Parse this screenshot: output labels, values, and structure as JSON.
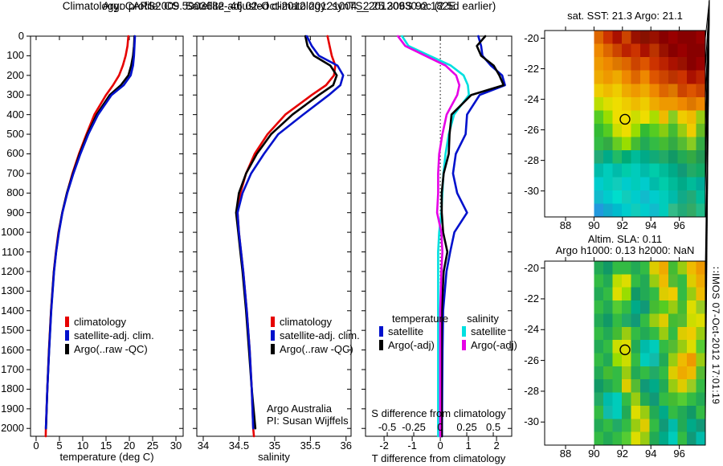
{
  "titles": {
    "line1": "Argo profile: CS 5903682_46 02-Oct-2012 20121004_2 25.306S 92.182E",
    "line2": "Climatology: CARS2009. Satellite-adjusted climatology: synTS_20120930.nc (2.5d earlier)"
  },
  "annotations": {
    "program": "Argo Australia",
    "pi": "PI: Susan Wijffels",
    "stamp": "∷IMOS 07-Oct-2012 17:01:19"
  },
  "chart_data": {
    "depths": [
      0,
      50,
      100,
      150,
      200,
      250,
      300,
      400,
      500,
      600,
      700,
      800,
      900,
      1000,
      1100,
      1200,
      1400,
      1600,
      1800,
      2000,
      2040
    ],
    "depth_ticks": [
      0,
      100,
      200,
      300,
      400,
      500,
      600,
      700,
      800,
      900,
      1000,
      1100,
      1200,
      1300,
      1400,
      1500,
      1600,
      1700,
      1800,
      1900,
      2000
    ],
    "temperature": {
      "type": "line",
      "xlabel": "temperature (deg C)",
      "xticks": [
        0,
        5,
        10,
        15,
        20,
        25,
        30
      ],
      "xlim": [
        -1.2,
        31.55
      ],
      "ylim": [
        0,
        2040
      ],
      "legend": [
        {
          "label": "climatology",
          "color": "#e60000"
        },
        {
          "label": "satellite-adj. clim.",
          "color": "#0011cc"
        },
        {
          "label": "Argo(..raw -QC)",
          "color": "#000000"
        }
      ],
      "series": [
        {
          "name": "climatology",
          "color": "#e60000",
          "values": [
            19.8,
            19.6,
            19.2,
            18.6,
            17.8,
            16.5,
            15.0,
            12.5,
            10.8,
            9.2,
            7.8,
            6.6,
            5.6,
            4.8,
            4.25,
            3.8,
            3.2,
            2.75,
            2.4,
            2.1,
            2.05
          ]
        },
        {
          "name": "Argo(..raw -QC)",
          "color": "#000000",
          "values": [
            21.1,
            21.0,
            20.8,
            20.4,
            19.8,
            18.2,
            15.8,
            13.0,
            11.0,
            9.35,
            7.9,
            6.6,
            5.6,
            4.85,
            4.28,
            3.82,
            3.22,
            2.78,
            2.4,
            2.12,
            null
          ]
        },
        {
          "name": "satellite-adj. clim.",
          "color": "#0011cc",
          "values": [
            21.2,
            21.1,
            21.0,
            20.8,
            20.3,
            18.8,
            16.2,
            13.3,
            11.2,
            9.5,
            8.0,
            6.7,
            5.65,
            4.9,
            4.3,
            3.85,
            3.25,
            2.8,
            2.4,
            2.1,
            null
          ]
        }
      ]
    },
    "salinity": {
      "type": "line",
      "xlabel": "salinity",
      "xticks": [
        34,
        34.5,
        35,
        35.5,
        36
      ],
      "xtick_labels": [
        "34",
        "34.5",
        "35",
        "35.5",
        "36"
      ],
      "xlim": [
        33.91,
        36.07
      ],
      "ylim": [
        0,
        2040
      ],
      "legend": [
        {
          "label": "climatology",
          "color": "#e60000"
        },
        {
          "label": "satellite-adj. clim.",
          "color": "#0011cc"
        },
        {
          "label": "Argo(..raw -QC)",
          "color": "#000000"
        }
      ],
      "series": [
        {
          "name": "climatology",
          "color": "#e60000",
          "values": [
            35.74,
            35.77,
            35.8,
            35.85,
            35.83,
            35.72,
            35.52,
            35.15,
            34.9,
            34.72,
            34.6,
            34.52,
            34.48,
            34.5,
            34.53,
            34.56,
            34.61,
            34.65,
            34.68,
            34.7,
            34.71
          ]
        },
        {
          "name": "Argo(..raw -QC)",
          "color": "#000000",
          "values": [
            35.43,
            35.46,
            35.55,
            35.78,
            35.87,
            35.82,
            35.62,
            35.25,
            34.95,
            34.75,
            34.6,
            34.5,
            34.46,
            34.49,
            34.52,
            34.55,
            34.6,
            34.64,
            34.68,
            34.73,
            null
          ]
        },
        {
          "name": "satellite-adj. clim.",
          "color": "#0011cc",
          "values": [
            35.45,
            35.52,
            35.62,
            35.88,
            35.96,
            35.92,
            35.76,
            35.4,
            35.05,
            34.85,
            34.67,
            34.55,
            34.48,
            34.5,
            34.53,
            34.56,
            34.61,
            34.65,
            34.68,
            34.7,
            null
          ]
        }
      ]
    },
    "difference": {
      "type": "line",
      "xlabel": "T difference from climatology",
      "inner_label": "S difference from climatology",
      "xticks": [
        -2,
        -1,
        0,
        1,
        2
      ],
      "xlim": [
        -2.66,
        2.54
      ],
      "s_ticks": [
        -0.5,
        -0.25,
        0,
        0.25,
        0.5
      ],
      "s_tick_labels": [
        "-0.5",
        "-0.25",
        "0",
        "0.25",
        "0.5"
      ],
      "s_xlim": [
        -0.705,
        0.674
      ],
      "ylim": [
        0,
        2040
      ],
      "legend_t": {
        "header": "temperature",
        "items": [
          {
            "label": "satellite",
            "color": "#0011cc"
          },
          {
            "label": "Argo(-adj)",
            "color": "#000000"
          }
        ]
      },
      "legend_s": {
        "header": "salinity",
        "items": [
          {
            "label": "satellite",
            "color": "#00e0e0"
          },
          {
            "label": "Argo(-adj)",
            "color": "#e600e6"
          }
        ]
      },
      "t_series": [
        {
          "name": "satellite",
          "color": "#0011cc",
          "values": [
            1.35,
            1.45,
            1.5,
            1.8,
            2.2,
            2.3,
            1.4,
            0.95,
            0.9,
            0.55,
            0.45,
            0.6,
            0.95,
            0.5,
            0.35,
            0.22,
            0.1,
            0.08,
            0.07,
            0.06,
            0.06
          ]
        },
        {
          "name": "Argo(-adj)",
          "color": "#000000",
          "values": [
            1.6,
            1.3,
            1.45,
            1.9,
            2.1,
            2.25,
            1.1,
            0.4,
            0.33,
            0.3,
            0.12,
            0.05,
            0.05,
            0.1,
            0.25,
            0.12,
            0.05,
            0.04,
            0.04,
            0.05,
            0.05
          ]
        }
      ],
      "s_series": [
        {
          "name": "satellite",
          "color": "#00e0e0",
          "values": [
            -0.36,
            -0.3,
            -0.1,
            0.1,
            0.22,
            0.26,
            0.27,
            0.13,
            0.08,
            0.05,
            0.03,
            0.02,
            0.01,
            -0.01,
            -0.02,
            -0.02,
            -0.02,
            -0.02,
            -0.02,
            -0.02,
            -0.02
          ]
        },
        {
          "name": "Argo(-adj)",
          "color": "#e600e6",
          "values": [
            -0.4,
            -0.33,
            -0.14,
            0.05,
            0.15,
            0.18,
            0.16,
            0.06,
            0.02,
            -0.01,
            -0.02,
            -0.02,
            -0.03,
            0.01,
            0.02,
            0.01,
            0.0,
            0.0,
            0.0,
            0.0,
            0.0
          ]
        }
      ]
    },
    "sst_map": {
      "type": "heatmap",
      "title": "sat. SST: 21.3 Argo: 21.1",
      "xticks": [
        88,
        90,
        92,
        94,
        96
      ],
      "yticks": [
        -20,
        -22,
        -24,
        -26,
        -28,
        -30
      ],
      "xlim": [
        86.53,
        97.83
      ],
      "ylim": [
        -19.5,
        -31.7
      ],
      "data_lon_start": 90,
      "marker": {
        "lon": 92.18,
        "lat": -25.31
      },
      "grid": [
        [
          "#dd6600",
          "#cc3300",
          "#aa1100",
          "#cc4400",
          "#991100",
          "#881100",
          "#991100",
          "#880000",
          "#990000",
          "#880000",
          "#880000",
          "#990000"
        ],
        [
          "#ee8800",
          "#dd6600",
          "#cc4400",
          "#bb2200",
          "#cc3300",
          "#aa1100",
          "#bb3300",
          "#991100",
          "#880000",
          "#990000",
          "#880000",
          "#880000"
        ],
        [
          "#ee9900",
          "#ee8800",
          "#dd7700",
          "#dd6600",
          "#cc4400",
          "#dd5500",
          "#cc3300",
          "#bb2200",
          "#aa1100",
          "#991100",
          "#880000",
          "#990000"
        ],
        [
          "#eeaa00",
          "#ee9900",
          "#eeaa00",
          "#ee8800",
          "#dd6600",
          "#ee8800",
          "#dd5500",
          "#cc4400",
          "#bb3300",
          "#cc3300",
          "#aa1100",
          "#bb2200"
        ],
        [
          "#eecc00",
          "#eebb00",
          "#eecc00",
          "#eeaa00",
          "#ee9900",
          "#eeaa00",
          "#ee8800",
          "#dd6600",
          "#dd7700",
          "#cc4400",
          "#dd5500",
          "#cc4400"
        ],
        [
          "#bbdd00",
          "#dddd00",
          "#eedd00",
          "#eecc00",
          "#eebb00",
          "#eecc00",
          "#eeaa00",
          "#ee9900",
          "#ee9900",
          "#ee8800",
          "#dd7700",
          "#ee8800"
        ],
        [
          "#55cc22",
          "#99dd00",
          "#eedd00",
          "#eedd00",
          "#ccdd00",
          "#eedd00",
          "#aadd00",
          "#eebb00",
          "#88cc22",
          "#eecc00",
          "#eebb00",
          "#99cc11"
        ],
        [
          "#33bb33",
          "#55cc22",
          "#ccdd00",
          "#eedd00",
          "#99dd00",
          "#33bb33",
          "#55cc22",
          "#88cc11",
          "#44bb33",
          "#99cc11",
          "#eecc00",
          "#66bb22"
        ],
        [
          "#33bb44",
          "#33aa44",
          "#66cc22",
          "#99dd00",
          "#44bb33",
          "#22aa55",
          "#33bb44",
          "#44bb33",
          "#33aa44",
          "#55bb33",
          "#88cc22",
          "#33aa44"
        ],
        [
          "#22aa77",
          "#00aa88",
          "#22bb66",
          "#00aa77",
          "#00bb99",
          "#00aa88",
          "#11aa77",
          "#22aa66",
          "#119966",
          "#22aa55",
          "#33aa44",
          "#229955"
        ],
        [
          "#00bbaa",
          "#00ccbb",
          "#00bbaa",
          "#00ccaa",
          "#00ccbb",
          "#00bbaa",
          "#00ccaa",
          "#00bb99",
          "#00aa88",
          "#119977",
          "#22aa66",
          "#11aa66"
        ],
        [
          "#00cccc",
          "#00ccbb",
          "#11ccbb",
          "#00cccc",
          "#00ccbb",
          "#00cccc",
          "#00bbaa",
          "#00ccaa",
          "#00bb99",
          "#00aa88",
          "#00bb99",
          "#00aa99"
        ],
        [
          "#11bbcc",
          "#00cccc",
          "#00ddcc",
          "#11ccbb",
          "#00cccc",
          "#11bbcc",
          "#00cccc",
          "#00ccbb",
          "#00bbaa",
          "#11aa88",
          "#22aa77",
          "#00bb99"
        ],
        [
          "#2299dd",
          "#11aacc",
          "#00bbcc",
          "#00cccc",
          "#11ccbb",
          "#00cccc",
          "#11bbcc",
          "#00ccbb",
          "#33bb88",
          "#22aa77",
          "#33aa66",
          "#22bb88"
        ]
      ]
    },
    "sla_map": {
      "type": "heatmap",
      "title1": "Altim. SLA: 0.11",
      "title2": "Argo h1000: 0.13 h2000: NaN",
      "xticks": [
        88,
        90,
        92,
        94,
        96
      ],
      "yticks": [
        -20,
        -22,
        -24,
        -26,
        -28,
        -30
      ],
      "xlim": [
        86.53,
        97.83
      ],
      "ylim": [
        -19.55,
        -31.5
      ],
      "data_lon_start": 90,
      "marker": {
        "lon": 92.18,
        "lat": -25.31
      },
      "grid": [
        [
          "#22aa55",
          "#119966",
          "#33bb44",
          "#33bb44",
          "#22aa55",
          "#33bb44",
          "#ddcc00",
          "#eeaa00",
          "#44bb33",
          "#99cc11",
          "#eebb00",
          "#ee9900"
        ],
        [
          "#33bb44",
          "#22aa55",
          "#bbdd00",
          "#dddd00",
          "#33bb44",
          "#22aa55",
          "#99cc11",
          "#eebb00",
          "#55bb33",
          "#33bb44",
          "#ddcc00",
          "#eeaa00"
        ],
        [
          "#22aa55",
          "#33bb44",
          "#dddd00",
          "#99dd00",
          "#119966",
          "#22aa55",
          "#33bb44",
          "#ddcc00",
          "#eecc00",
          "#33bb44",
          "#99cc11",
          "#eebb00"
        ],
        [
          "#33bb44",
          "#22aa55",
          "#55cc33",
          "#33bb44",
          "#00aa88",
          "#119977",
          "#44bb33",
          "#55cc22",
          "#99cc11",
          "#44bb33",
          "#dddd00",
          "#99cc22"
        ],
        [
          "#22aa55",
          "#119966",
          "#33bb44",
          "#22aa66",
          "#119977",
          "#33bb44",
          "#99cc11",
          "#ddcc00",
          "#44bb33",
          "#55bb33",
          "#ccdd00",
          "#dddd00"
        ],
        [
          "#33bb44",
          "#22aa55",
          "#44bb33",
          "#99cc11",
          "#33bb44",
          "#22aa55",
          "#33bb44",
          "#99cc11",
          "#33bb44",
          "#ddcc00",
          "#eecc00",
          "#99cc11"
        ],
        [
          "#22aa55",
          "#33bb44",
          "#ccdd00",
          "#dddd00",
          "#22aa55",
          "#00bbaa",
          "#00ccbb",
          "#33bb44",
          "#55bb33",
          "#99cc11",
          "#dddd00",
          "#55cc33"
        ],
        [
          "#33bb44",
          "#22aa55",
          "#99dd00",
          "#ccdd00",
          "#33bb44",
          "#00ccbb",
          "#11bbaa",
          "#22aa55",
          "#99cc11",
          "#eebb00",
          "#ee9900",
          "#99cc11"
        ],
        [
          "#22aa55",
          "#44bb33",
          "#33bb44",
          "#99cc11",
          "#22aa55",
          "#33bb44",
          "#22aa66",
          "#33bb44",
          "#ddcc00",
          "#eeaa00",
          "#eebb00",
          "#55bb33"
        ],
        [
          "#119966",
          "#22aa55",
          "#33bb44",
          "#ddcc00",
          "#55bb33",
          "#119977",
          "#00aa88",
          "#22aa55",
          "#99cc11",
          "#ddcc00",
          "#99cc22",
          "#33bb44"
        ],
        [
          "#22aa66",
          "#00bbaa",
          "#00ccbb",
          "#33bb44",
          "#99cc11",
          "#22aa55",
          "#119977",
          "#33bb44",
          "#44bb33",
          "#55cc33",
          "#33bb44",
          "#22aa55"
        ],
        [
          "#33bb44",
          "#11bbaa",
          "#00ccbb",
          "#22aa55",
          "#dddd00",
          "#99cc11",
          "#22aa55",
          "#00aa88",
          "#33bb44",
          "#22aa55",
          "#119966",
          "#33bb44"
        ],
        [
          "#22aa55",
          "#33bb44",
          "#22aa66",
          "#33bb44",
          "#99cc11",
          "#ddcc00",
          "#33bb44",
          "#119977",
          "#00bbaa",
          "#22aa55",
          "#00aa88",
          "#119977"
        ],
        [
          "#33bb44",
          "#22aa55",
          "#33bb44",
          "#55cc33",
          "#dddd00",
          "#99cc11",
          "#22aa55",
          "#00aa88",
          "#00ccbb",
          "#33bb44",
          "#119977",
          "#00bbaa"
        ]
      ]
    }
  }
}
